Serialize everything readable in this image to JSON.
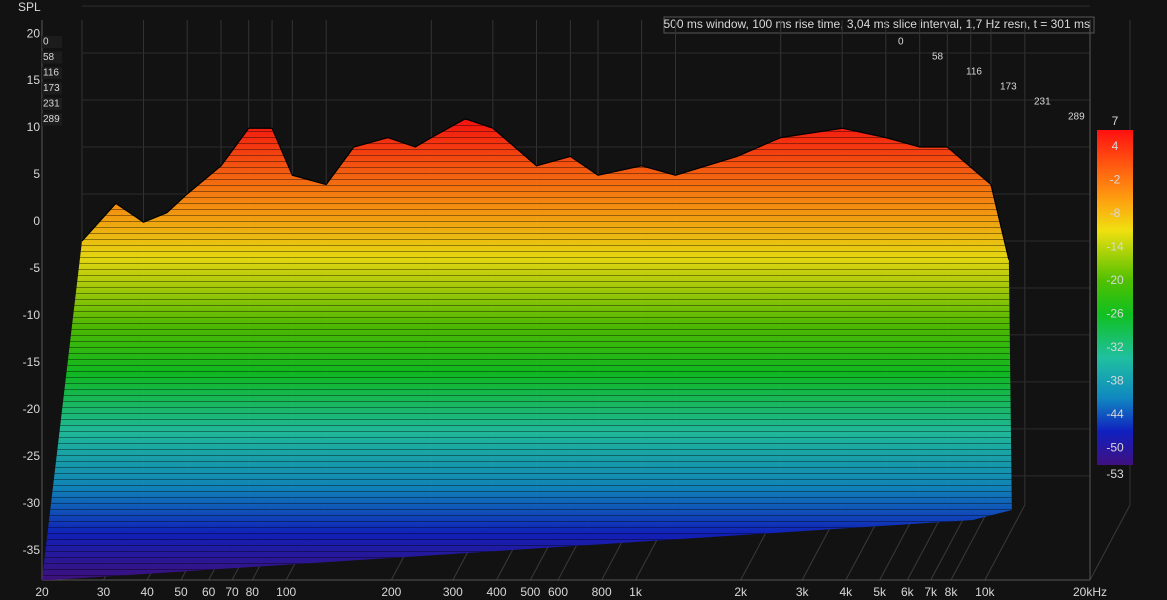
{
  "chart_data": {
    "type": "waterfall",
    "y_label": "SPL",
    "annotation": "500 ms window, 100 ms rise time, 3,04 ms slice interval, 1,7 Hz resn, t = 301 ms",
    "log_x": true,
    "xlim": [
      20,
      20000
    ],
    "xticks": [
      20,
      30,
      40,
      50,
      60,
      70,
      80,
      100,
      200,
      300,
      400,
      500,
      600,
      800,
      {
        "value": 1000,
        "label": "1k"
      },
      {
        "value": 2000,
        "label": "2k"
      },
      {
        "value": 3000,
        "label": "3k"
      },
      {
        "value": 4000,
        "label": "4k"
      },
      {
        "value": 5000,
        "label": "5k"
      },
      {
        "value": 6000,
        "label": "6k"
      },
      {
        "value": 7000,
        "label": "7k"
      },
      {
        "value": 8000,
        "label": "8k"
      },
      {
        "value": 10000,
        "label": "10k"
      },
      {
        "value": 20000,
        "label": "20kHz"
      }
    ],
    "ylim": [
      -38.1,
      21.5
    ],
    "yticks": [
      20,
      15,
      10,
      5,
      0,
      -5,
      -10,
      -15,
      -20,
      -25,
      -30,
      -35
    ],
    "time_labels": [
      "0",
      "58",
      "116",
      "173",
      "231",
      "289"
    ],
    "x": [
      20,
      25,
      30,
      35,
      40,
      50,
      60,
      70,
      80,
      100,
      120,
      150,
      180,
      200,
      250,
      300,
      400,
      500,
      600,
      800,
      1000,
      1500,
      2000,
      3000,
      4000,
      5000,
      6000,
      8000,
      9000
    ],
    "series": [
      {
        "name": "0",
        "values": [
          -10,
          -6,
          -8,
          -7,
          -5,
          -2,
          2,
          2,
          -3,
          -4,
          0,
          1,
          0,
          1,
          3,
          2,
          -2,
          -1,
          -3,
          -2,
          -3,
          -1,
          1,
          2,
          1,
          0,
          0,
          -4,
          -12
        ]
      }
    ],
    "colorbar": {
      "lim": [
        -53,
        7
      ],
      "ticks": [
        7,
        4,
        -2,
        -8,
        -14,
        -20,
        -26,
        -32,
        -38,
        -44,
        -50,
        -53
      ]
    }
  }
}
